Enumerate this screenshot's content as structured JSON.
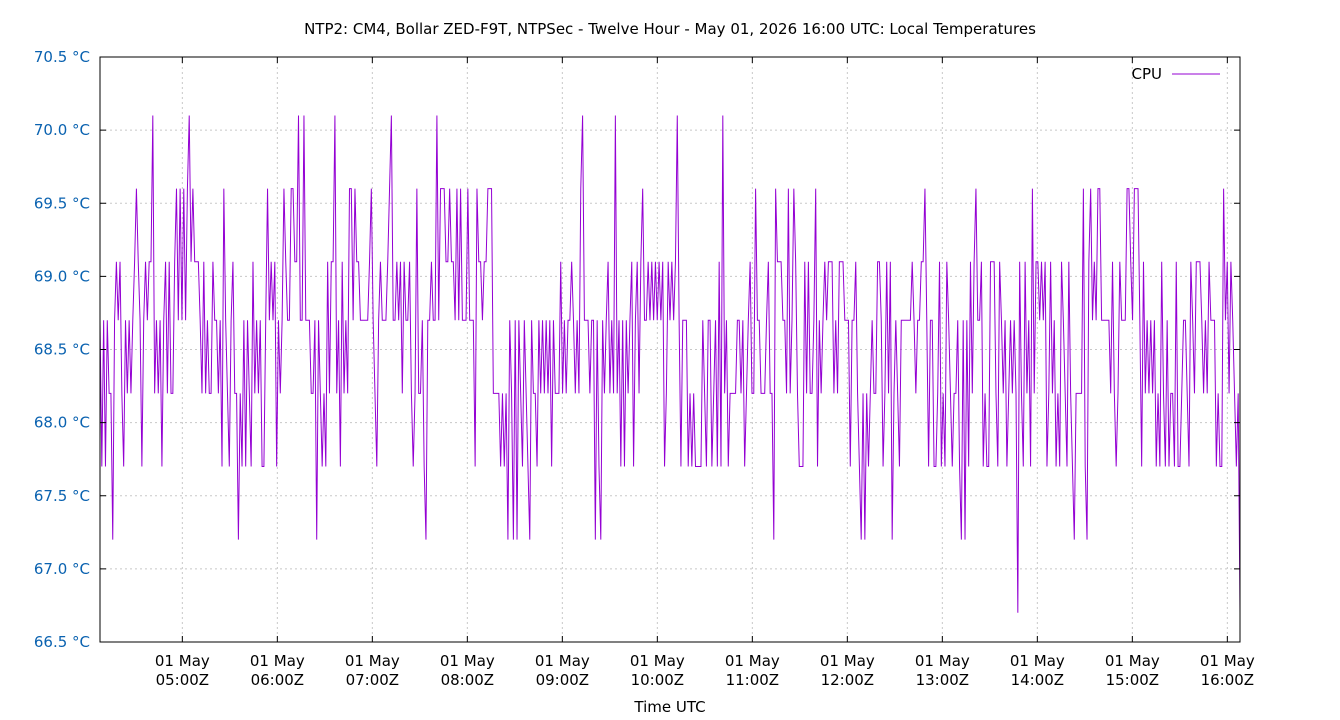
{
  "chart_data": {
    "type": "line",
    "title": "NTP2: CM4, Bollar ZED-F9T, NTPSec - Twelve Hour - May 01, 2026 16:00 UTC: Local Temperatures",
    "xlabel": "Time UTC",
    "ylabel": "",
    "ylim": [
      66.5,
      70.5
    ],
    "yticks": [
      66.5,
      67.0,
      67.5,
      68.0,
      68.5,
      69.0,
      69.5,
      70.0,
      70.5
    ],
    "ytick_labels": [
      "66.5 °C",
      "67.0 °C",
      "67.5 °C",
      "68.0 °C",
      "68.5 °C",
      "69.0 °C",
      "69.5 °C",
      "70.0 °C",
      "70.5 °C"
    ],
    "xlim": [
      "2026-05-01T04:08Z",
      "2026-05-01T16:08Z"
    ],
    "xticks": [
      {
        "time": "2026-05-01T05:00Z",
        "line1": "01 May",
        "line2": "05:00Z"
      },
      {
        "time": "2026-05-01T06:00Z",
        "line1": "01 May",
        "line2": "06:00Z"
      },
      {
        "time": "2026-05-01T07:00Z",
        "line1": "01 May",
        "line2": "07:00Z"
      },
      {
        "time": "2026-05-01T08:00Z",
        "line1": "01 May",
        "line2": "08:00Z"
      },
      {
        "time": "2026-05-01T09:00Z",
        "line1": "01 May",
        "line2": "09:00Z"
      },
      {
        "time": "2026-05-01T10:00Z",
        "line1": "01 May",
        "line2": "10:00Z"
      },
      {
        "time": "2026-05-01T11:00Z",
        "line1": "01 May",
        "line2": "11:00Z"
      },
      {
        "time": "2026-05-01T12:00Z",
        "line1": "01 May",
        "line2": "12:00Z"
      },
      {
        "time": "2026-05-01T13:00Z",
        "line1": "01 May",
        "line2": "13:00Z"
      },
      {
        "time": "2026-05-01T14:00Z",
        "line1": "01 May",
        "line2": "14:00Z"
      },
      {
        "time": "2026-05-01T15:00Z",
        "line1": "01 May",
        "line2": "15:00Z"
      },
      {
        "time": "2026-05-01T16:00Z",
        "line1": "01 May",
        "line2": "16:00Z"
      }
    ],
    "grid": true,
    "legend": "top-right",
    "series": [
      {
        "name": "CPU",
        "color": "#9400d3",
        "x_start": "2026-05-01T04:08Z",
        "x_end": "2026-05-01T16:08Z",
        "values": [
          68.7,
          67.7,
          68.7,
          67.7,
          68.7,
          68.2,
          68.2,
          67.2,
          68.7,
          69.1,
          68.7,
          69.1,
          68.2,
          67.7,
          68.7,
          68.2,
          68.7,
          68.2,
          68.7,
          69.1,
          69.6,
          69.1,
          68.7,
          67.7,
          68.7,
          69.1,
          68.7,
          69.1,
          69.1,
          70.1,
          68.2,
          68.7,
          68.2,
          68.7,
          67.7,
          68.7,
          69.1,
          68.2,
          69.1,
          68.2,
          68.2,
          69.1,
          69.6,
          68.7,
          69.6,
          68.7,
          69.6,
          68.7,
          69.6,
          70.1,
          69.1,
          69.6,
          69.1,
          69.1,
          69.1,
          68.7,
          68.2,
          69.1,
          68.2,
          68.7,
          68.2,
          68.2,
          69.1,
          68.7,
          68.7,
          68.2,
          68.7,
          67.7,
          69.6,
          68.7,
          68.2,
          67.7,
          68.7,
          69.1,
          68.2,
          68.2,
          67.2,
          68.2,
          67.7,
          68.7,
          67.7,
          68.7,
          68.2,
          67.7,
          69.1,
          68.2,
          68.7,
          68.2,
          68.7,
          67.7,
          67.7,
          68.7,
          69.6,
          68.7,
          69.1,
          68.7,
          69.1,
          67.7,
          68.7,
          68.2,
          68.7,
          69.6,
          69.1,
          68.7,
          68.7,
          69.6,
          69.6,
          69.1,
          69.1,
          70.1,
          68.7,
          68.7,
          70.1,
          68.7,
          68.7,
          68.7,
          68.2,
          68.2,
          68.7,
          67.2,
          68.7,
          68.2,
          67.7,
          68.2,
          67.7,
          69.1,
          68.2,
          69.1,
          69.1,
          70.1,
          68.2,
          68.7,
          67.7,
          69.1,
          68.2,
          68.7,
          68.2,
          69.6,
          69.6,
          68.7,
          69.6,
          69.1,
          69.1,
          68.7,
          68.7,
          68.7,
          68.7,
          68.7,
          69.1,
          69.6,
          68.7,
          68.2,
          67.7,
          68.7,
          69.1,
          68.7,
          68.7,
          68.7,
          69.1,
          69.6,
          70.1,
          68.7,
          68.7,
          69.1,
          68.7,
          69.1,
          68.2,
          69.1,
          68.7,
          68.7,
          69.1,
          68.2,
          67.7,
          68.2,
          69.6,
          68.2,
          68.2,
          68.7,
          67.7,
          67.2,
          68.7,
          68.7,
          69.1,
          68.7,
          68.7,
          70.1,
          68.7,
          69.6,
          69.6,
          69.6,
          69.1,
          69.1,
          69.6,
          69.1,
          69.1,
          68.7,
          69.6,
          68.7,
          69.6,
          68.7,
          68.7,
          68.7,
          69.6,
          68.7,
          68.7,
          68.7,
          67.7,
          69.6,
          69.1,
          69.1,
          68.7,
          69.1,
          69.1,
          69.6,
          69.6,
          69.6,
          68.2,
          68.2,
          68.2,
          68.2,
          67.7,
          68.2,
          67.7,
          68.2,
          67.2,
          68.7,
          68.2,
          67.2,
          68.7,
          67.2,
          68.7,
          68.2,
          67.7,
          68.7,
          68.2,
          67.7,
          67.2,
          68.7,
          68.2,
          68.2,
          67.7,
          68.7,
          68.2,
          68.7,
          68.2,
          68.7,
          68.2,
          68.7,
          67.7,
          68.7,
          68.2,
          68.2,
          68.2,
          69.1,
          68.2,
          68.7,
          68.2,
          68.7,
          68.7,
          69.1,
          68.7,
          68.2,
          68.7,
          68.2,
          69.6,
          70.1,
          68.7,
          68.7,
          68.7,
          68.2,
          68.7,
          68.7,
          67.2,
          68.7,
          67.7,
          67.2,
          68.7,
          68.2,
          68.7,
          69.1,
          68.2,
          68.7,
          68.2,
          70.1,
          68.2,
          68.7,
          67.7,
          68.7,
          67.7,
          68.7,
          68.2,
          68.7,
          69.1,
          67.7,
          68.7,
          69.1,
          68.2,
          69.1,
          69.6,
          68.7,
          68.7,
          69.1,
          68.7,
          69.1,
          68.7,
          69.1,
          68.7,
          69.1,
          68.7,
          69.1,
          67.7,
          68.2,
          69.1,
          68.7,
          69.1,
          68.7,
          69.1,
          70.1,
          68.7,
          67.7,
          68.7,
          68.7,
          68.7,
          67.7,
          68.2,
          67.7,
          68.2,
          67.7,
          67.7,
          67.7,
          67.7,
          68.7,
          68.2,
          67.7,
          68.7,
          68.7,
          67.7,
          68.2,
          68.7,
          67.7,
          69.1,
          67.7,
          70.1,
          68.2,
          68.7,
          67.7,
          68.2,
          68.2,
          68.2,
          68.2,
          68.7,
          68.7,
          68.2,
          68.7,
          67.7,
          68.2,
          68.7,
          69.1,
          68.2,
          68.2,
          69.6,
          68.7,
          68.7,
          68.2,
          68.2,
          68.2,
          68.7,
          69.1,
          68.2,
          68.2,
          67.2,
          69.6,
          69.1,
          69.1,
          69.1,
          68.7,
          68.7,
          68.2,
          69.6,
          68.2,
          68.7,
          69.6,
          69.1,
          68.2,
          67.7,
          67.7,
          67.7,
          69.1,
          68.2,
          69.1,
          68.2,
          68.2,
          68.7,
          69.6,
          67.7,
          68.7,
          68.2,
          68.7,
          69.1,
          68.7,
          69.1,
          69.1,
          69.1,
          68.2,
          68.7,
          68.2,
          69.1,
          69.1,
          69.1,
          68.7,
          68.7,
          68.7,
          67.7,
          68.7,
          68.7,
          69.1,
          68.2,
          67.7,
          67.2,
          68.2,
          67.2,
          68.2,
          67.7,
          68.2,
          68.7,
          68.2,
          68.2,
          69.1,
          69.1,
          68.7,
          67.7,
          68.2,
          69.1,
          68.2,
          69.1,
          67.2,
          68.2,
          68.7,
          68.2,
          67.7,
          68.7,
          68.7,
          68.7,
          68.7,
          68.7,
          68.7,
          69.1,
          68.7,
          68.2,
          68.7,
          68.7,
          69.1,
          69.1,
          69.6,
          68.7,
          67.7,
          68.7,
          68.7,
          67.7,
          67.7,
          68.2,
          69.1,
          67.7,
          68.2,
          67.7,
          69.1,
          68.7,
          68.2,
          67.7,
          68.2,
          68.2,
          68.7,
          67.7,
          67.2,
          68.7,
          67.2,
          68.7,
          67.7,
          69.1,
          68.2,
          69.1,
          69.6,
          68.7,
          68.7,
          69.1,
          67.7,
          68.2,
          67.7,
          67.7,
          69.1,
          69.1,
          69.1,
          68.2,
          67.7,
          69.1,
          68.7,
          68.2,
          68.7,
          67.7,
          68.2,
          68.7,
          68.2,
          68.7,
          68.2,
          66.7,
          69.1,
          68.2,
          67.7,
          69.1,
          68.2,
          68.7,
          67.7,
          69.6,
          68.2,
          69.1,
          69.1,
          68.7,
          69.1,
          68.7,
          69.1,
          67.7,
          68.2,
          69.1,
          68.2,
          68.7,
          67.7,
          68.2,
          67.7,
          69.1,
          68.7,
          68.2,
          67.7,
          69.1,
          68.2,
          67.7,
          67.2,
          68.2,
          68.2,
          68.2,
          68.2,
          69.6,
          67.7,
          67.2,
          69.1,
          69.6,
          68.7,
          69.1,
          68.7,
          69.6,
          69.6,
          68.7,
          68.7,
          68.7,
          68.7,
          68.7,
          68.2,
          69.1,
          68.2,
          67.7,
          68.2,
          69.1,
          68.7,
          68.7,
          68.7,
          69.6,
          69.6,
          69.1,
          68.7,
          69.6,
          69.6,
          69.6,
          68.7,
          67.7,
          69.1,
          68.2,
          68.7,
          68.2,
          68.7,
          68.2,
          68.7,
          67.7,
          68.2,
          67.7,
          69.1,
          68.2,
          67.7,
          68.7,
          67.7,
          68.2,
          68.2,
          67.7,
          69.1,
          67.7,
          67.7,
          68.2,
          68.7,
          68.7,
          68.2,
          67.7,
          69.1,
          68.7,
          68.2,
          69.1,
          69.1,
          69.1,
          68.7,
          68.2,
          68.7,
          68.2,
          69.1,
          68.7,
          68.7,
          68.7,
          67.7,
          68.2,
          67.7,
          67.7,
          69.6,
          68.7,
          69.1,
          68.2,
          69.1,
          68.7,
          68.2,
          67.7,
          68.2,
          66.7
        ]
      }
    ]
  }
}
